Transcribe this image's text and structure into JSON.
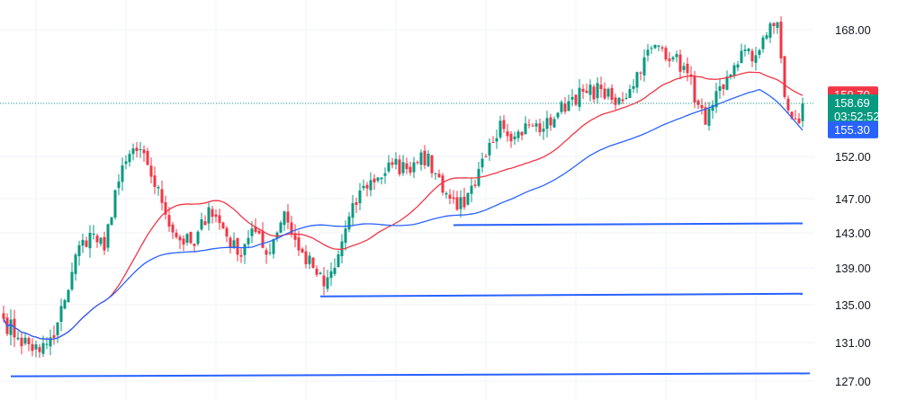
{
  "chart_data": {
    "type": "candlestick",
    "colors": {
      "up": "#089981",
      "down": "#f23645",
      "ma_fast": "#f23645",
      "ma_slow": "#2962ff",
      "support": "#2962ff",
      "grid": "#f0f3fa",
      "text": "#131722",
      "price_line": "#089981"
    },
    "y_axis": {
      "ticks": [
        {
          "value": 168,
          "label": "168.00"
        },
        {
          "value": 152,
          "label": "152.00"
        },
        {
          "value": 147,
          "label": "147.00"
        },
        {
          "value": 143,
          "label": "143.00"
        },
        {
          "value": 139,
          "label": "139.00"
        },
        {
          "value": 135,
          "label": "135.00"
        },
        {
          "value": 131,
          "label": "131.00"
        },
        {
          "value": 127,
          "label": "127.00"
        }
      ]
    },
    "badges": {
      "ma_fast": {
        "value": 159.7,
        "label": "159.70"
      },
      "last": {
        "value": 158.69,
        "label": "158.69",
        "countdown": "03:52:52"
      },
      "ma_slow": {
        "value": 155.3,
        "label": "155.30"
      }
    },
    "support_levels": [
      {
        "from_bar": 2,
        "to_bar": 224,
        "value_start": 127.5,
        "value_end": 127.8
      },
      {
        "from_bar": 88,
        "to_bar": 222,
        "value_start": 135.9,
        "value_end": 136.2
      },
      {
        "from_bar": 125,
        "to_bar": 222,
        "value_start": 143.9,
        "value_end": 144.1
      }
    ],
    "keypoints": [
      [
        0,
        133.5
      ],
      [
        4,
        131.5
      ],
      [
        10,
        130.0
      ],
      [
        14,
        131.5
      ],
      [
        17,
        135.5
      ],
      [
        20,
        140.5
      ],
      [
        24,
        143.0
      ],
      [
        28,
        141.0
      ],
      [
        31,
        148.0
      ],
      [
        36,
        153.0
      ],
      [
        40,
        151.0
      ],
      [
        44,
        146.5
      ],
      [
        48,
        142.5
      ],
      [
        53,
        141.5
      ],
      [
        57,
        146.0
      ],
      [
        61,
        143.5
      ],
      [
        65,
        140.5
      ],
      [
        69,
        143.5
      ],
      [
        73,
        140.5
      ],
      [
        78,
        145.5
      ],
      [
        82,
        141.0
      ],
      [
        86,
        139.0
      ],
      [
        89,
        137.0
      ],
      [
        92,
        139.0
      ],
      [
        95,
        143.5
      ],
      [
        100,
        148.5
      ],
      [
        104,
        149.5
      ],
      [
        108,
        151.0
      ],
      [
        112,
        150.5
      ],
      [
        116,
        152.5
      ],
      [
        120,
        150.0
      ],
      [
        124,
        147.0
      ],
      [
        128,
        146.0
      ],
      [
        131,
        148.5
      ],
      [
        134,
        152.0
      ],
      [
        138,
        156.5
      ],
      [
        142,
        154.5
      ],
      [
        146,
        156.0
      ],
      [
        150,
        155.5
      ],
      [
        154,
        157.5
      ],
      [
        158,
        159.5
      ],
      [
        162,
        160.0
      ],
      [
        166,
        160.5
      ],
      [
        170,
        158.5
      ],
      [
        174,
        160.5
      ],
      [
        178,
        164.5
      ],
      [
        182,
        166.0
      ],
      [
        186,
        164.5
      ],
      [
        190,
        162.5
      ],
      [
        193,
        158.5
      ],
      [
        195,
        156.0
      ],
      [
        197,
        158.5
      ],
      [
        200,
        160.5
      ],
      [
        203,
        163.5
      ],
      [
        206,
        165.5
      ],
      [
        208,
        164.0
      ],
      [
        211,
        167.0
      ],
      [
        214,
        168.5
      ],
      [
        215,
        169.0
      ],
      [
        217,
        159.5
      ],
      [
        219,
        156.8
      ],
      [
        221,
        156.2
      ],
      [
        222,
        158.69
      ]
    ]
  }
}
